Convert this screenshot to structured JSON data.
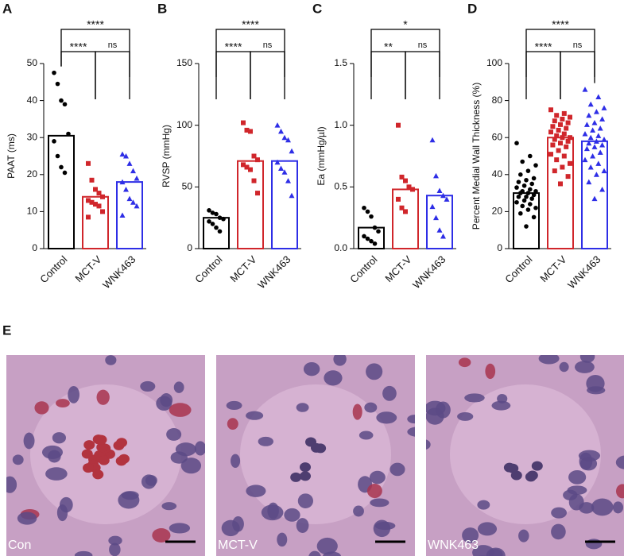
{
  "chart_data": [
    {
      "type": "bar",
      "panel_label": "A",
      "ylabel": "PAAT (ms)",
      "categories": [
        "Control",
        "MCT-V",
        "WNK463"
      ],
      "values": [
        30.5,
        14,
        18
      ],
      "colors": [
        "#000000",
        "#d0262b",
        "#2e2ee6"
      ],
      "markers": [
        "circle",
        "square",
        "triangle"
      ],
      "points": [
        [
          47.5,
          44.5,
          40,
          39,
          31,
          29,
          25,
          22,
          20.5
        ],
        [
          23,
          18.5,
          16,
          15,
          14,
          13,
          12.5,
          12,
          11.5,
          10,
          8.5
        ],
        [
          25.5,
          25,
          23,
          21,
          19,
          18,
          16,
          13.5,
          12.5,
          11.5,
          9
        ]
      ],
      "ylim": [
        0,
        50
      ],
      "yticks": [
        0,
        10,
        20,
        30,
        40,
        50
      ],
      "comparisons": [
        {
          "pair": [
            "Control",
            "WNK463"
          ],
          "label": "****"
        },
        {
          "pair": [
            "Control",
            "MCT-V"
          ],
          "label": "****"
        },
        {
          "pair": [
            "MCT-V",
            "WNK463"
          ],
          "label": "ns"
        }
      ]
    },
    {
      "type": "bar",
      "panel_label": "B",
      "ylabel": "RVSP (mmHg)",
      "categories": [
        "Control",
        "MCT-V",
        "WNK463"
      ],
      "values": [
        25,
        71,
        71
      ],
      "colors": [
        "#000000",
        "#d0262b",
        "#2e2ee6"
      ],
      "markers": [
        "circle",
        "square",
        "triangle"
      ],
      "points": [
        [
          31,
          29,
          28,
          25,
          24,
          22,
          20,
          17,
          14
        ],
        [
          102,
          96,
          95,
          75,
          72,
          68,
          66,
          64,
          55,
          45
        ],
        [
          100,
          95,
          90,
          88,
          79,
          70,
          65,
          62,
          55,
          43
        ]
      ],
      "ylim": [
        0,
        150
      ],
      "yticks": [
        0,
        50,
        100,
        150
      ],
      "comparisons": [
        {
          "pair": [
            "Control",
            "WNK463"
          ],
          "label": "****"
        },
        {
          "pair": [
            "Control",
            "MCT-V"
          ],
          "label": "****"
        },
        {
          "pair": [
            "MCT-V",
            "WNK463"
          ],
          "label": "ns"
        }
      ]
    },
    {
      "type": "bar",
      "panel_label": "C",
      "ylabel": "Ea (mmHg/µl)",
      "categories": [
        "Control",
        "MCT-V",
        "WNK463"
      ],
      "values": [
        0.17,
        0.48,
        0.43
      ],
      "colors": [
        "#000000",
        "#d0262b",
        "#2e2ee6"
      ],
      "markers": [
        "circle",
        "square",
        "triangle"
      ],
      "points": [
        [
          0.33,
          0.3,
          0.26,
          0.17,
          0.14,
          0.1,
          0.08,
          0.06,
          0.04
        ],
        [
          1.0,
          0.58,
          0.55,
          0.5,
          0.48,
          0.4,
          0.33,
          0.3
        ],
        [
          0.88,
          0.59,
          0.47,
          0.43,
          0.4,
          0.34,
          0.25,
          0.15,
          0.1
        ]
      ],
      "ylim": [
        0,
        1.5
      ],
      "yticks": [
        {
          "value": 0,
          "label": "0.0"
        },
        {
          "value": 0.5,
          "label": "0.5"
        },
        {
          "value": 1,
          "label": "1.0"
        },
        {
          "value": 1.5,
          "label": "1.5"
        }
      ],
      "comparisons": [
        {
          "pair": [
            "Control",
            "WNK463"
          ],
          "label": "*"
        },
        {
          "pair": [
            "Control",
            "MCT-V"
          ],
          "label": "**"
        },
        {
          "pair": [
            "MCT-V",
            "WNK463"
          ],
          "label": "ns"
        }
      ]
    },
    {
      "type": "bar",
      "panel_label": "D",
      "ylabel": "Percent Medial Wall Thickness (%)",
      "categories": [
        "Control",
        "MCT-V",
        "WNK463"
      ],
      "values": [
        30,
        60,
        58
      ],
      "colors": [
        "#000000",
        "#d0262b",
        "#2e2ee6"
      ],
      "markers": [
        "circle",
        "square",
        "triangle"
      ],
      "points": [
        [
          57,
          50,
          47,
          45,
          42,
          40,
          38,
          37,
          36,
          35,
          34,
          33,
          32,
          31,
          31,
          30,
          30,
          29,
          28,
          28,
          27,
          26,
          25,
          24,
          23,
          22,
          21,
          19,
          17,
          12
        ],
        [
          75,
          73,
          72,
          71,
          70,
          69,
          68,
          67,
          66,
          65,
          64,
          63,
          62,
          61,
          60,
          60,
          59,
          58,
          57,
          56,
          55,
          53,
          51,
          50,
          48,
          46,
          44,
          42,
          39,
          35
        ],
        [
          86,
          82,
          78,
          76,
          74,
          72,
          70,
          68,
          67,
          65,
          64,
          62,
          61,
          60,
          59,
          58,
          57,
          56,
          55,
          54,
          52,
          50,
          48,
          46,
          44,
          42,
          40,
          36,
          32,
          27
        ]
      ],
      "ylim": [
        0,
        100
      ],
      "yticks": [
        0,
        20,
        40,
        60,
        80,
        100
      ],
      "comparisons": [
        {
          "pair": [
            "Control",
            "WNK463"
          ],
          "label": "****"
        },
        {
          "pair": [
            "Control",
            "MCT-V"
          ],
          "label": "****"
        },
        {
          "pair": [
            "MCT-V",
            "WNK463"
          ],
          "label": "ns"
        }
      ]
    }
  ],
  "panel_e": {
    "label": "E",
    "images": [
      "Con",
      "MCT-V",
      "WNK463"
    ]
  }
}
